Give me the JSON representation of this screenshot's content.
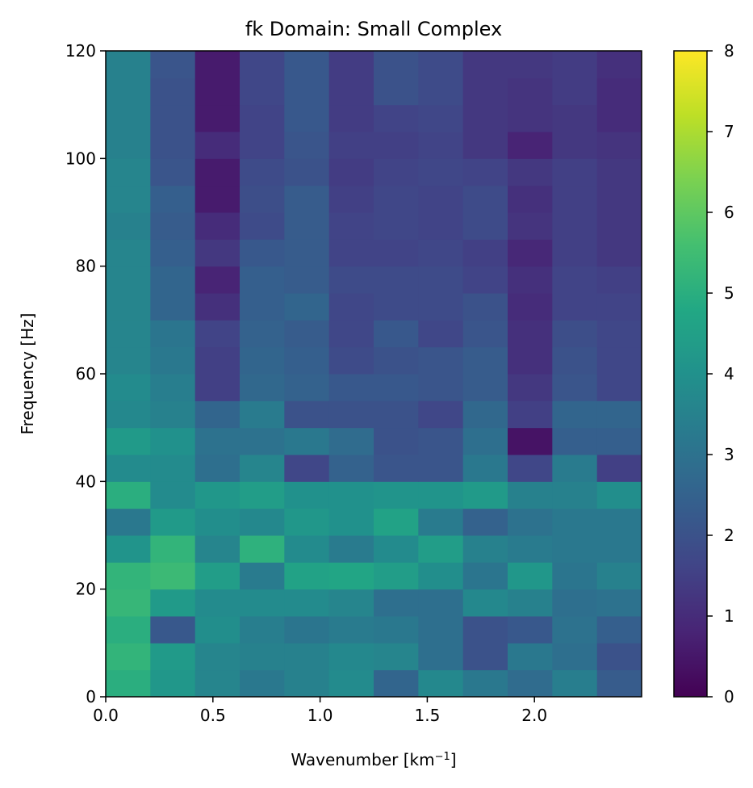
{
  "chart_data": {
    "type": "heatmap",
    "title": "fk Domain: Small Complex",
    "xlabel": "Wavenumber [km",
    "xlabel_superscript": "−1",
    "xlabel_suffix": "]",
    "ylabel": "Frequency [Hz]",
    "xlim": [
      0,
      2.5
    ],
    "ylim": [
      0,
      120
    ],
    "x_ticks": [
      0.0,
      0.5,
      1.0,
      1.5,
      2.0
    ],
    "x_tick_labels": [
      "0.0",
      "0.5",
      "1.0",
      "1.5",
      "2.0"
    ],
    "y_ticks": [
      0,
      20,
      40,
      60,
      80,
      100,
      120
    ],
    "y_tick_labels": [
      "0",
      "20",
      "40",
      "60",
      "80",
      "100",
      "120"
    ],
    "colorbar": {
      "colormap": "viridis",
      "range": [
        0,
        8
      ],
      "ticks": [
        0,
        1,
        2,
        3,
        4,
        5,
        6,
        7,
        8
      ],
      "tick_labels": [
        "0",
        "1",
        "2",
        "3",
        "4",
        "5",
        "6",
        "7",
        "8"
      ]
    },
    "x_bin_edges": [
      0,
      0.2083,
      0.4167,
      0.625,
      0.8333,
      1.0417,
      1.25,
      1.4583,
      1.6667,
      1.875,
      2.0833,
      2.2917,
      2.5
    ],
    "y_bin_edges": [
      0,
      5,
      10,
      15,
      20,
      25,
      30,
      35,
      40,
      45,
      50,
      55,
      60,
      65,
      70,
      75,
      80,
      85,
      90,
      95,
      100,
      105,
      110,
      115,
      120
    ],
    "values": [
      [
        5.0,
        4.2,
        3.6,
        3.2,
        3.5,
        3.8,
        2.6,
        3.7,
        3.2,
        2.8,
        3.4,
        2.3
      ],
      [
        5.2,
        4.3,
        3.6,
        3.5,
        3.5,
        3.7,
        3.6,
        2.9,
        2.0,
        3.2,
        2.9,
        2.0
      ],
      [
        5.0,
        2.2,
        3.9,
        3.4,
        3.1,
        3.3,
        3.2,
        2.9,
        2.0,
        2.2,
        3.0,
        2.4
      ],
      [
        5.3,
        4.3,
        3.8,
        3.8,
        3.8,
        3.6,
        2.9,
        2.9,
        3.7,
        3.5,
        2.9,
        3.0
      ],
      [
        5.2,
        5.4,
        4.4,
        3.3,
        4.6,
        4.7,
        4.4,
        3.9,
        3.1,
        4.2,
        3.1,
        3.5
      ],
      [
        4.1,
        5.2,
        3.6,
        5.1,
        3.8,
        3.3,
        3.8,
        4.4,
        3.5,
        3.3,
        3.2,
        3.2
      ],
      [
        3.2,
        4.3,
        3.9,
        3.7,
        4.2,
        4.0,
        4.6,
        3.3,
        2.5,
        3.0,
        3.2,
        3.2
      ],
      [
        5.0,
        3.8,
        4.2,
        4.4,
        4.0,
        4.0,
        4.1,
        4.1,
        4.3,
        3.5,
        3.5,
        3.9
      ],
      [
        3.8,
        3.8,
        2.9,
        3.6,
        1.7,
        2.5,
        2.1,
        2.1,
        3.2,
        1.7,
        3.3,
        1.5
      ],
      [
        4.3,
        4.0,
        3.0,
        3.0,
        3.2,
        2.8,
        2.0,
        2.1,
        2.9,
        0.4,
        2.4,
        2.4
      ],
      [
        3.7,
        3.5,
        2.6,
        3.3,
        2.0,
        2.0,
        2.0,
        1.7,
        2.7,
        1.5,
        2.6,
        2.6
      ],
      [
        3.8,
        3.4,
        1.5,
        2.7,
        2.5,
        2.2,
        2.2,
        2.1,
        2.3,
        1.3,
        2.1,
        1.7
      ],
      [
        3.6,
        3.2,
        1.5,
        2.6,
        2.4,
        1.8,
        2.0,
        2.1,
        2.3,
        1.1,
        2.0,
        1.7
      ],
      [
        3.6,
        3.1,
        1.6,
        2.5,
        2.3,
        1.7,
        2.2,
        1.7,
        2.1,
        1.1,
        1.9,
        1.7
      ],
      [
        3.6,
        2.6,
        1.1,
        2.4,
        2.6,
        1.7,
        1.8,
        1.8,
        2.0,
        1.0,
        1.6,
        1.6
      ],
      [
        3.6,
        2.6,
        0.8,
        2.4,
        2.3,
        1.8,
        1.8,
        1.8,
        1.6,
        1.1,
        1.6,
        1.5
      ],
      [
        3.6,
        2.4,
        1.3,
        2.2,
        2.3,
        1.6,
        1.6,
        1.7,
        1.5,
        0.9,
        1.5,
        1.3
      ],
      [
        3.5,
        2.3,
        1.0,
        1.8,
        2.3,
        1.6,
        1.7,
        1.6,
        1.8,
        1.2,
        1.5,
        1.3
      ],
      [
        3.6,
        2.4,
        0.6,
        1.9,
        2.3,
        1.5,
        1.7,
        1.6,
        1.8,
        1.1,
        1.5,
        1.3
      ],
      [
        3.6,
        2.1,
        0.6,
        1.8,
        2.0,
        1.4,
        1.6,
        1.7,
        1.6,
        1.3,
        1.5,
        1.3
      ],
      [
        3.5,
        2.0,
        1.0,
        1.6,
        2.1,
        1.5,
        1.5,
        1.6,
        1.3,
        0.8,
        1.3,
        1.2
      ],
      [
        3.5,
        2.0,
        0.6,
        1.6,
        2.2,
        1.4,
        1.6,
        1.7,
        1.3,
        1.2,
        1.3,
        1.0
      ],
      [
        3.5,
        2.0,
        0.6,
        1.7,
        2.2,
        1.4,
        2.0,
        1.8,
        1.3,
        1.2,
        1.4,
        1.0
      ],
      [
        3.5,
        2.1,
        0.6,
        1.7,
        2.2,
        1.4,
        2.0,
        1.8,
        1.3,
        1.3,
        1.4,
        1.1
      ]
    ]
  }
}
